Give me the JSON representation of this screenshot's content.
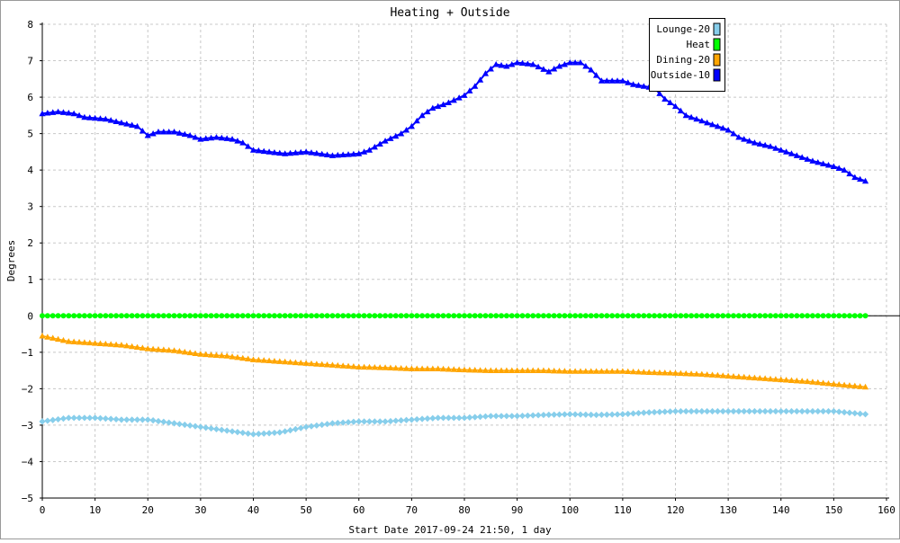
{
  "chart_data": {
    "type": "line",
    "title": "Heating + Outside",
    "xlabel": "Start Date 2017-09-24 21:50, 1 day",
    "ylabel": "Degrees",
    "xlim": [
      0,
      160
    ],
    "ylim": [
      -5,
      8
    ],
    "xticks": [
      0,
      10,
      20,
      30,
      40,
      50,
      60,
      70,
      80,
      90,
      100,
      110,
      120,
      130,
      140,
      150,
      160
    ],
    "yticks": [
      -5,
      -4,
      -3,
      -2,
      -1,
      0,
      1,
      2,
      3,
      4,
      5,
      6,
      7,
      8
    ],
    "grid": true,
    "legend_position": "top-right",
    "series": [
      {
        "name": "Lounge-20",
        "color": "#87ceeb",
        "marker": "diamond",
        "points": [
          [
            0,
            -2.9
          ],
          [
            5,
            -2.8
          ],
          [
            10,
            -2.8
          ],
          [
            15,
            -2.85
          ],
          [
            20,
            -2.85
          ],
          [
            25,
            -2.95
          ],
          [
            30,
            -3.05
          ],
          [
            35,
            -3.15
          ],
          [
            40,
            -3.25
          ],
          [
            45,
            -3.2
          ],
          [
            50,
            -3.05
          ],
          [
            55,
            -2.95
          ],
          [
            60,
            -2.9
          ],
          [
            65,
            -2.9
          ],
          [
            70,
            -2.85
          ],
          [
            75,
            -2.8
          ],
          [
            80,
            -2.8
          ],
          [
            85,
            -2.75
          ],
          [
            90,
            -2.75
          ],
          [
            95,
            -2.72
          ],
          [
            100,
            -2.7
          ],
          [
            105,
            -2.72
          ],
          [
            110,
            -2.7
          ],
          [
            115,
            -2.65
          ],
          [
            120,
            -2.62
          ],
          [
            125,
            -2.62
          ],
          [
            130,
            -2.62
          ],
          [
            135,
            -2.62
          ],
          [
            140,
            -2.62
          ],
          [
            145,
            -2.62
          ],
          [
            150,
            -2.62
          ],
          [
            156,
            -2.7
          ]
        ]
      },
      {
        "name": "Heat",
        "color": "#00ff00",
        "marker": "circle",
        "points": [
          [
            0,
            0
          ],
          [
            156,
            0
          ]
        ]
      },
      {
        "name": "Dining-20",
        "color": "#ffa500",
        "marker": "triangle",
        "points": [
          [
            0,
            -0.55
          ],
          [
            5,
            -0.7
          ],
          [
            10,
            -0.75
          ],
          [
            15,
            -0.8
          ],
          [
            20,
            -0.9
          ],
          [
            25,
            -0.95
          ],
          [
            30,
            -1.05
          ],
          [
            35,
            -1.1
          ],
          [
            40,
            -1.2
          ],
          [
            45,
            -1.25
          ],
          [
            50,
            -1.3
          ],
          [
            55,
            -1.35
          ],
          [
            60,
            -1.4
          ],
          [
            65,
            -1.42
          ],
          [
            70,
            -1.45
          ],
          [
            75,
            -1.45
          ],
          [
            80,
            -1.48
          ],
          [
            85,
            -1.5
          ],
          [
            90,
            -1.5
          ],
          [
            95,
            -1.5
          ],
          [
            100,
            -1.52
          ],
          [
            105,
            -1.52
          ],
          [
            110,
            -1.52
          ],
          [
            115,
            -1.55
          ],
          [
            120,
            -1.57
          ],
          [
            125,
            -1.6
          ],
          [
            130,
            -1.65
          ],
          [
            135,
            -1.7
          ],
          [
            140,
            -1.75
          ],
          [
            145,
            -1.8
          ],
          [
            150,
            -1.87
          ],
          [
            156,
            -1.95
          ]
        ]
      },
      {
        "name": "Outside-10",
        "color": "#0000ff",
        "marker": "triangle",
        "points": [
          [
            0,
            5.55
          ],
          [
            3,
            5.6
          ],
          [
            6,
            5.55
          ],
          [
            8,
            5.45
          ],
          [
            12,
            5.4
          ],
          [
            15,
            5.3
          ],
          [
            18,
            5.2
          ],
          [
            20,
            4.95
          ],
          [
            22,
            5.05
          ],
          [
            25,
            5.05
          ],
          [
            28,
            4.95
          ],
          [
            30,
            4.85
          ],
          [
            33,
            4.9
          ],
          [
            36,
            4.85
          ],
          [
            38,
            4.75
          ],
          [
            40,
            4.55
          ],
          [
            43,
            4.5
          ],
          [
            46,
            4.45
          ],
          [
            50,
            4.5
          ],
          [
            55,
            4.4
          ],
          [
            60,
            4.45
          ],
          [
            62,
            4.55
          ],
          [
            65,
            4.8
          ],
          [
            68,
            5.0
          ],
          [
            70,
            5.2
          ],
          [
            72,
            5.5
          ],
          [
            74,
            5.7
          ],
          [
            77,
            5.85
          ],
          [
            80,
            6.05
          ],
          [
            82,
            6.3
          ],
          [
            84,
            6.65
          ],
          [
            86,
            6.9
          ],
          [
            88,
            6.85
          ],
          [
            90,
            6.95
          ],
          [
            93,
            6.9
          ],
          [
            96,
            6.7
          ],
          [
            98,
            6.85
          ],
          [
            100,
            6.95
          ],
          [
            102,
            6.95
          ],
          [
            104,
            6.75
          ],
          [
            106,
            6.45
          ],
          [
            110,
            6.45
          ],
          [
            112,
            6.35
          ],
          [
            114,
            6.3
          ],
          [
            116,
            6.25
          ],
          [
            118,
            5.95
          ],
          [
            120,
            5.75
          ],
          [
            122,
            5.5
          ],
          [
            125,
            5.35
          ],
          [
            128,
            5.2
          ],
          [
            130,
            5.1
          ],
          [
            132,
            4.9
          ],
          [
            135,
            4.75
          ],
          [
            138,
            4.65
          ],
          [
            140,
            4.55
          ],
          [
            143,
            4.4
          ],
          [
            146,
            4.25
          ],
          [
            150,
            4.1
          ],
          [
            152,
            4.0
          ],
          [
            154,
            3.8
          ],
          [
            156,
            3.7
          ]
        ]
      }
    ]
  }
}
